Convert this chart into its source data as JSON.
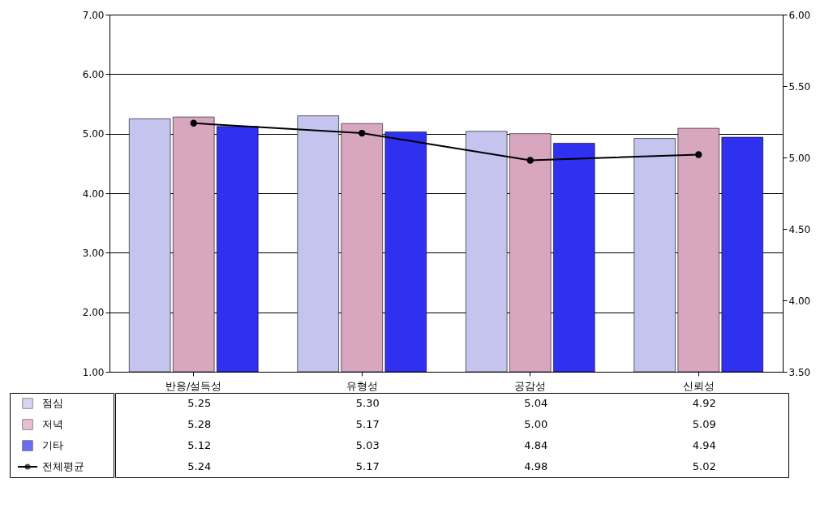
{
  "chart_data": {
    "type": "bar",
    "categories": [
      "반응/설득성",
      "유형성",
      "공감성",
      "신뢰성"
    ],
    "series": [
      {
        "name": "점심",
        "color": "#c4c4ee",
        "values": [
          5.25,
          5.3,
          5.04,
          4.92
        ],
        "value_labels": [
          "5.25",
          "5.30",
          "5.04",
          "4.92"
        ]
      },
      {
        "name": "저녁",
        "color": "#d9a6c0",
        "values": [
          5.28,
          5.17,
          5.0,
          5.09
        ],
        "value_labels": [
          "5.28",
          "5.17",
          "5.00",
          "5.09"
        ]
      },
      {
        "name": "기타",
        "color": "#3030f0",
        "values": [
          5.12,
          5.03,
          4.84,
          4.94
        ],
        "value_labels": [
          "5.12",
          "5.03",
          "4.84",
          "4.94"
        ]
      },
      {
        "name": "전체평균",
        "type": "line",
        "axis": "y2",
        "color": "#000000",
        "values": [
          5.24,
          5.17,
          4.98,
          5.02
        ],
        "value_labels": [
          "5.24",
          "5.17",
          "4.98",
          "5.02"
        ]
      }
    ],
    "ylim": [
      1,
      7
    ],
    "yticks": [
      {
        "value": 1,
        "label": "1.00"
      },
      {
        "value": 2,
        "label": "2.00"
      },
      {
        "value": 3,
        "label": "3.00"
      },
      {
        "value": 4,
        "label": "4.00"
      },
      {
        "value": 5,
        "label": "5.00"
      },
      {
        "value": 6,
        "label": "6.00"
      },
      {
        "value": 7,
        "label": "7.00"
      }
    ],
    "y2lim": [
      3.5,
      6
    ],
    "y2ticks": [
      {
        "value": 3.5,
        "label": "3.50"
      },
      {
        "value": 4,
        "label": "4.00"
      },
      {
        "value": 4.5,
        "label": "4.50"
      },
      {
        "value": 5,
        "label": "5.00"
      },
      {
        "value": 5.5,
        "label": "5.50"
      },
      {
        "value": 6,
        "label": "6.00"
      }
    ],
    "grid": "y",
    "marker": "circle",
    "line_style": "solid",
    "legend": "bottom left"
  }
}
